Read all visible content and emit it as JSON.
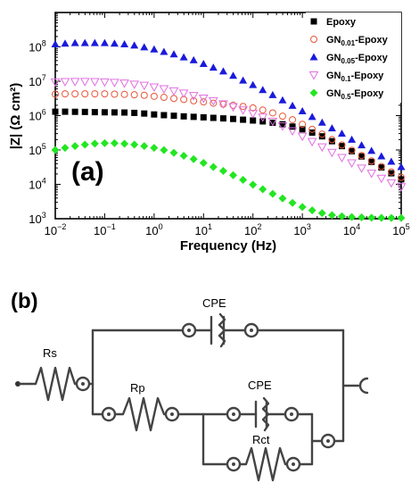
{
  "chart_data": {
    "type": "scatter",
    "panel_label": "(a)",
    "xlabel": "Frequency (Hz)",
    "ylabel": "|Z| (Ω cm²)",
    "xscale": "log",
    "yscale": "log",
    "xlim": [
      0.01,
      100000
    ],
    "ylim": [
      1000,
      1000000000
    ],
    "xticks": [
      {
        "v": 0.01,
        "base": "10",
        "exp": "−2"
      },
      {
        "v": 0.1,
        "base": "10",
        "exp": "−1"
      },
      {
        "v": 1,
        "base": "10",
        "exp": "0"
      },
      {
        "v": 10,
        "base": "10",
        "exp": "1"
      },
      {
        "v": 100,
        "base": "10",
        "exp": "2"
      },
      {
        "v": 1000,
        "base": "10",
        "exp": "3"
      },
      {
        "v": 10000,
        "base": "10",
        "exp": "4"
      },
      {
        "v": 100000,
        "base": "10",
        "exp": "5"
      }
    ],
    "yticks": [
      {
        "v": 1000,
        "base": "10",
        "exp": "3"
      },
      {
        "v": 10000,
        "base": "10",
        "exp": "4"
      },
      {
        "v": 100000,
        "base": "10",
        "exp": "5"
      },
      {
        "v": 1000000,
        "base": "10",
        "exp": "6"
      },
      {
        "v": 10000000,
        "base": "10",
        "exp": "7"
      },
      {
        "v": 100000000,
        "base": "10",
        "exp": "8"
      }
    ],
    "legend_position": "top-right",
    "x": [
      0.01,
      0.0158,
      0.0251,
      0.0398,
      0.0631,
      0.1,
      0.158,
      0.251,
      0.398,
      0.631,
      1,
      1.58,
      2.51,
      3.98,
      6.31,
      10,
      15.8,
      25.1,
      39.8,
      63.1,
      100,
      158,
      251,
      398,
      631,
      1000,
      1580,
      2510,
      3980,
      6310,
      10000,
      15800,
      25100,
      39800,
      63100,
      100000
    ],
    "series": [
      {
        "name": "Epoxy",
        "sub": "",
        "suffix": "",
        "marker": "square",
        "color": "#000000",
        "values": [
          1300000,
          1300000,
          1290000,
          1280000,
          1260000,
          1250000,
          1240000,
          1230000,
          1200000,
          1150000,
          1080000,
          1030000,
          990000,
          950000,
          920000,
          890000,
          860000,
          830000,
          800000,
          760000,
          720000,
          680000,
          620000,
          560000,
          480000,
          400000,
          320000,
          250000,
          180000,
          130000,
          92000,
          65000,
          45000,
          31000,
          21000,
          14000
        ]
      },
      {
        "name": "GN",
        "sub": "0.01",
        "suffix": "-Epoxy",
        "marker": "circle-open",
        "color": "#e8563a",
        "values": [
          4200000,
          4300000,
          4300000,
          4300000,
          4300000,
          4300000,
          4200000,
          4150000,
          4050000,
          3900000,
          3650000,
          3400000,
          3150000,
          2950000,
          2700000,
          2500000,
          2300000,
          2150000,
          2000000,
          1850000,
          1680000,
          1450000,
          1200000,
          960000,
          760000,
          560000,
          400000,
          290000,
          200000,
          140000,
          98000,
          69000,
          48000,
          33000,
          23000,
          16000
        ]
      },
      {
        "name": "GN",
        "sub": "0.05",
        "suffix": "-Epoxy",
        "marker": "triangle-up",
        "color": "#1a1adc",
        "values": [
          120000000,
          125000000,
          130000000,
          130000000,
          130000000,
          130000000,
          125000000,
          120000000,
          110000000,
          98000000,
          85000000,
          72000000,
          61000000,
          50000000,
          41000000,
          32000000,
          25000000,
          19500000,
          14500000,
          10500000,
          7800000,
          5600000,
          4000000,
          2800000,
          1950000,
          1350000,
          920000,
          630000,
          430000,
          300000,
          200000,
          138000,
          95000,
          66000,
          46000,
          32000
        ]
      },
      {
        "name": "GN",
        "sub": "0.1",
        "suffix": "-Epoxy",
        "marker": "triangle-down-open",
        "color": "#e070e0",
        "values": [
          9500000,
          9700000,
          9800000,
          9800000,
          9700000,
          9500000,
          9200000,
          8800000,
          8200000,
          7600000,
          6800000,
          6000000,
          5200000,
          4500000,
          3800000,
          3200000,
          2700000,
          2200000,
          1800000,
          1450000,
          1150000,
          900000,
          680000,
          500000,
          360000,
          250000,
          175000,
          122000,
          85000,
          60000,
          42000,
          29500,
          21000,
          15000,
          11000,
          8500
        ]
      },
      {
        "name": "GN",
        "sub": "0.5",
        "suffix": "-Epoxy",
        "marker": "diamond",
        "color": "#22e622",
        "values": [
          100000,
          115000,
          130000,
          143000,
          153000,
          158000,
          158000,
          152000,
          143000,
          130000,
          115000,
          99000,
          83000,
          68000,
          54000,
          42000,
          32000,
          24500,
          18500,
          13500,
          9800,
          7200,
          5300,
          3900,
          2900,
          2200,
          1750,
          1450,
          1270,
          1180,
          1120,
          1090,
          1070,
          1060,
          1055,
          1050
        ]
      }
    ]
  },
  "circuit": {
    "panel_label": "(b)",
    "labels": {
      "rs": "Rs",
      "rp": "Rp",
      "rct": "Rct",
      "cpe_top": "CPE",
      "cpe_mid": "CPE"
    }
  }
}
